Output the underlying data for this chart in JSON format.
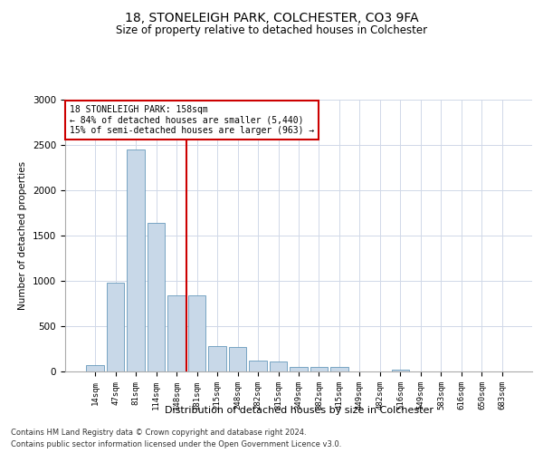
{
  "title1": "18, STONELEIGH PARK, COLCHESTER, CO3 9FA",
  "title2": "Size of property relative to detached houses in Colchester",
  "xlabel": "Distribution of detached houses by size in Colchester",
  "ylabel": "Number of detached properties",
  "categories": [
    "14sqm",
    "47sqm",
    "81sqm",
    "114sqm",
    "148sqm",
    "181sqm",
    "215sqm",
    "248sqm",
    "282sqm",
    "315sqm",
    "349sqm",
    "382sqm",
    "415sqm",
    "449sqm",
    "482sqm",
    "516sqm",
    "549sqm",
    "583sqm",
    "616sqm",
    "650sqm",
    "683sqm"
  ],
  "values": [
    70,
    980,
    2450,
    1640,
    840,
    840,
    280,
    275,
    125,
    115,
    50,
    50,
    55,
    0,
    0,
    25,
    0,
    0,
    0,
    0,
    0
  ],
  "bar_color": "#c8d8e8",
  "bar_edge_color": "#6699bb",
  "vline_color": "#cc0000",
  "annotation_box_color": "#cc0000",
  "marker_label": "18 STONELEIGH PARK: 158sqm",
  "pct_smaller": "84% of detached houses are smaller (5,440)",
  "pct_larger": "15% of semi-detached houses are larger (963)",
  "ylim": [
    0,
    3000
  ],
  "yticks": [
    0,
    500,
    1000,
    1500,
    2000,
    2500,
    3000
  ],
  "footer1": "Contains HM Land Registry data © Crown copyright and database right 2024.",
  "footer2": "Contains public sector information licensed under the Open Government Licence v3.0."
}
